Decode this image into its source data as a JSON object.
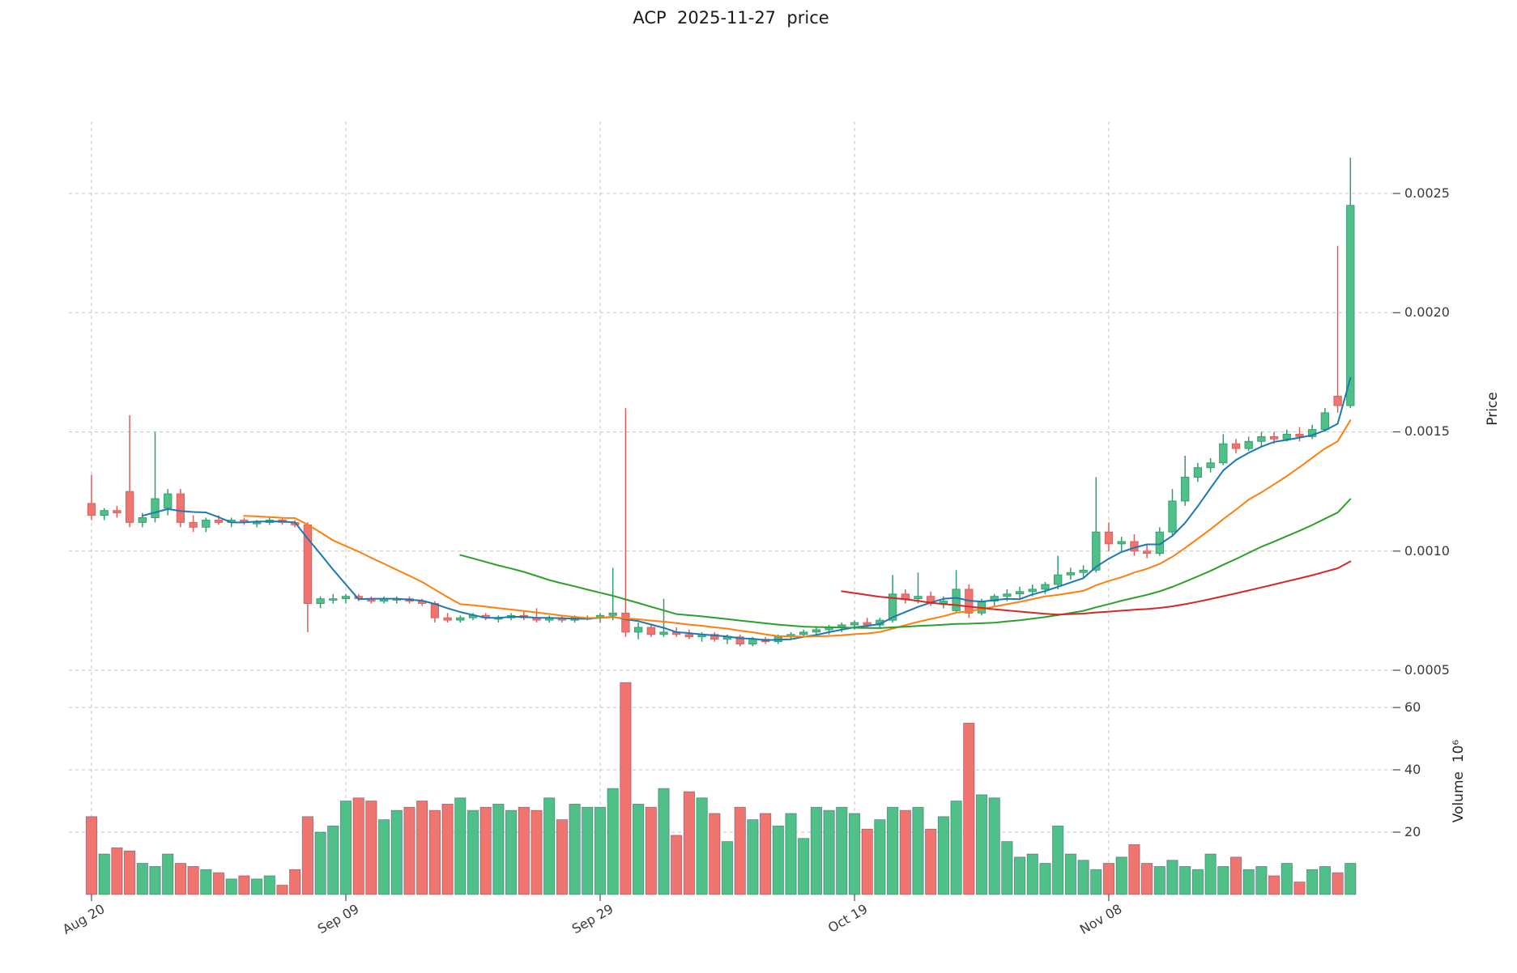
{
  "title": "ACP  2025-11-27  price",
  "axes": {
    "price_label": "Price",
    "volume_label": "Volume  10⁶",
    "price_ticks": [
      "0.0005",
      "0.0010",
      "0.0015",
      "0.0020",
      "0.0025"
    ],
    "volume_ticks": [
      "20",
      "40",
      "60"
    ],
    "x_ticks": [
      "Aug 20",
      "Sep 09",
      "Sep 29",
      "Oct 19",
      "Nov 08"
    ]
  },
  "chart_data": {
    "type": "candlestick",
    "title": "ACP  2025-11-27  price",
    "ylabel": "Price",
    "ylabel2": "Volume  10⁶",
    "grid": "dashed",
    "price_ylim": [
      0.0004,
      0.00285
    ],
    "volume_ylim": [
      0,
      70
    ],
    "price_tick_values": [
      0.0005,
      0.001,
      0.0015,
      0.002,
      0.0025
    ],
    "volume_tick_values": [
      20,
      40,
      60
    ],
    "x_tick_positions": [
      0,
      20,
      40,
      60,
      80
    ],
    "x_tick_labels": [
      "Aug 20",
      "Sep 09",
      "Sep 29",
      "Oct 19",
      "Nov 08"
    ],
    "up_color": "#4fc088",
    "down_color": "#f07470",
    "up_edge_color": "#2f9d6c",
    "down_edge_color": "#d95f5b",
    "moving_averages": [
      {
        "window": 5,
        "color": "#1f77b4"
      },
      {
        "window": 13,
        "color": "#ff7f0e"
      },
      {
        "window": 30,
        "color": "#2ca02c"
      },
      {
        "window": 60,
        "color": "#d62728"
      }
    ],
    "dates": [
      "2025-08-20",
      "2025-08-21",
      "2025-08-22",
      "2025-08-23",
      "2025-08-24",
      "2025-08-25",
      "2025-08-26",
      "2025-08-27",
      "2025-08-28",
      "2025-08-29",
      "2025-08-30",
      "2025-08-31",
      "2025-09-01",
      "2025-09-02",
      "2025-09-03",
      "2025-09-04",
      "2025-09-05",
      "2025-09-06",
      "2025-09-07",
      "2025-09-08",
      "2025-09-09",
      "2025-09-10",
      "2025-09-11",
      "2025-09-12",
      "2025-09-13",
      "2025-09-14",
      "2025-09-15",
      "2025-09-16",
      "2025-09-17",
      "2025-09-18",
      "2025-09-19",
      "2025-09-20",
      "2025-09-21",
      "2025-09-22",
      "2025-09-23",
      "2025-09-24",
      "2025-09-25",
      "2025-09-26",
      "2025-09-27",
      "2025-09-28",
      "2025-09-29",
      "2025-09-30",
      "2025-10-01",
      "2025-10-02",
      "2025-10-03",
      "2025-10-04",
      "2025-10-05",
      "2025-10-06",
      "2025-10-07",
      "2025-10-08",
      "2025-10-09",
      "2025-10-10",
      "2025-10-11",
      "2025-10-12",
      "2025-10-13",
      "2025-10-14",
      "2025-10-15",
      "2025-10-16",
      "2025-10-17",
      "2025-10-18",
      "2025-10-19",
      "2025-10-20",
      "2025-10-21",
      "2025-10-22",
      "2025-10-23",
      "2025-10-24",
      "2025-10-25",
      "2025-10-26",
      "2025-10-27",
      "2025-10-28",
      "2025-10-29",
      "2025-10-30",
      "2025-10-31",
      "2025-11-01",
      "2025-11-02",
      "2025-11-03",
      "2025-11-04",
      "2025-11-05",
      "2025-11-06",
      "2025-11-07",
      "2025-11-08",
      "2025-11-09",
      "2025-11-10",
      "2025-11-11",
      "2025-11-12",
      "2025-11-13",
      "2025-11-14",
      "2025-11-15",
      "2025-11-16",
      "2025-11-17",
      "2025-11-18",
      "2025-11-19",
      "2025-11-20",
      "2025-11-21",
      "2025-11-22",
      "2025-11-23",
      "2025-11-24",
      "2025-11-25",
      "2025-11-26",
      "2025-11-27"
    ],
    "open": [
      0.0012,
      0.00115,
      0.00117,
      0.00125,
      0.00112,
      0.00114,
      0.00118,
      0.00124,
      0.00112,
      0.0011,
      0.00113,
      0.00112,
      0.00113,
      0.00112,
      0.00112,
      0.00113,
      0.00112,
      0.00111,
      0.00078,
      0.0008,
      0.0008,
      0.00081,
      0.0008,
      0.00079,
      0.0008,
      0.0008,
      0.00079,
      0.00078,
      0.00072,
      0.00071,
      0.00072,
      0.00073,
      0.00072,
      0.00072,
      0.00073,
      0.00072,
      0.00071,
      0.00072,
      0.00071,
      0.00072,
      0.00072,
      0.00073,
      0.00074,
      0.00066,
      0.00068,
      0.00065,
      0.00066,
      0.00065,
      0.00064,
      0.00065,
      0.00063,
      0.00064,
      0.00061,
      0.00063,
      0.00062,
      0.00064,
      0.00065,
      0.00066,
      0.00067,
      0.00068,
      0.00069,
      0.0007,
      0.00069,
      0.00071,
      0.00082,
      0.0008,
      0.00081,
      0.00078,
      0.00075,
      0.00084,
      0.00074,
      0.00079,
      0.00081,
      0.00082,
      0.00083,
      0.00084,
      0.00086,
      0.0009,
      0.00091,
      0.00092,
      0.00108,
      0.00103,
      0.00104,
      0.001,
      0.00099,
      0.00108,
      0.00121,
      0.00131,
      0.00135,
      0.00137,
      0.00145,
      0.00143,
      0.00146,
      0.00148,
      0.00147,
      0.00149,
      0.00148,
      0.00151,
      0.00165,
      0.00161
    ],
    "high": [
      0.00132,
      0.00118,
      0.00119,
      0.00157,
      0.00116,
      0.0015,
      0.00126,
      0.00126,
      0.00115,
      0.00114,
      0.00115,
      0.00114,
      0.00114,
      0.00113,
      0.00114,
      0.00114,
      0.00113,
      0.00112,
      0.00081,
      0.00082,
      0.00082,
      0.00082,
      0.00081,
      0.00081,
      0.00081,
      0.00081,
      0.0008,
      0.00079,
      0.00074,
      0.00073,
      0.00074,
      0.00074,
      0.00073,
      0.00074,
      0.00075,
      0.00076,
      0.00073,
      0.00073,
      0.00073,
      0.00073,
      0.00074,
      0.00093,
      0.0016,
      0.0007,
      0.00069,
      0.0008,
      0.00068,
      0.00067,
      0.00066,
      0.00066,
      0.00065,
      0.00065,
      0.00064,
      0.00064,
      0.00065,
      0.00066,
      0.00067,
      0.00068,
      0.00069,
      0.0007,
      0.00071,
      0.00072,
      0.00072,
      0.0009,
      0.00084,
      0.00091,
      0.00083,
      0.00081,
      0.00092,
      0.00086,
      0.0008,
      0.00082,
      0.00084,
      0.00085,
      0.00086,
      0.00087,
      0.00098,
      0.00093,
      0.00094,
      0.00131,
      0.00112,
      0.00106,
      0.00107,
      0.00103,
      0.0011,
      0.00126,
      0.0014,
      0.00137,
      0.00139,
      0.00149,
      0.00147,
      0.00148,
      0.0015,
      0.0015,
      0.00151,
      0.00152,
      0.00153,
      0.0016,
      0.00228,
      0.00265
    ],
    "low": [
      0.00113,
      0.00113,
      0.00114,
      0.0011,
      0.0011,
      0.00112,
      0.00115,
      0.0011,
      0.00108,
      0.00108,
      0.00111,
      0.0011,
      0.00111,
      0.0011,
      0.00111,
      0.00111,
      0.0011,
      0.00066,
      0.00076,
      0.00078,
      0.00078,
      0.00079,
      0.00078,
      0.00078,
      0.00078,
      0.00078,
      0.00077,
      0.0007,
      0.0007,
      0.0007,
      0.00071,
      0.00071,
      0.0007,
      0.00071,
      0.00071,
      0.0007,
      0.0007,
      0.0007,
      0.0007,
      0.00071,
      0.0007,
      0.00071,
      0.00064,
      0.00063,
      0.00064,
      0.00064,
      0.00064,
      0.00063,
      0.00062,
      0.00062,
      0.00061,
      0.0006,
      0.0006,
      0.00061,
      0.00061,
      0.00063,
      0.00064,
      0.00064,
      0.00065,
      0.00066,
      0.00067,
      0.00068,
      0.00068,
      0.0007,
      0.00078,
      0.00078,
      0.00077,
      0.00076,
      0.00074,
      0.00072,
      0.00073,
      0.00077,
      0.00079,
      0.0008,
      0.00081,
      0.00082,
      0.00084,
      0.00088,
      0.00089,
      0.00091,
      0.001,
      0.001,
      0.00098,
      0.00097,
      0.00098,
      0.00106,
      0.00119,
      0.00129,
      0.00133,
      0.00136,
      0.00141,
      0.00142,
      0.00144,
      0.00145,
      0.00146,
      0.00146,
      0.00147,
      0.0015,
      0.00158,
      0.0016
    ],
    "close": [
      0.00115,
      0.00117,
      0.00116,
      0.00112,
      0.00114,
      0.00122,
      0.00124,
      0.00112,
      0.0011,
      0.00113,
      0.00112,
      0.00113,
      0.00112,
      0.00112,
      0.00113,
      0.00112,
      0.00111,
      0.00078,
      0.0008,
      0.0008,
      0.00081,
      0.0008,
      0.00079,
      0.0008,
      0.0008,
      0.00079,
      0.00078,
      0.00072,
      0.00071,
      0.00072,
      0.00073,
      0.00072,
      0.00072,
      0.00073,
      0.00072,
      0.00071,
      0.00072,
      0.00071,
      0.00072,
      0.00072,
      0.00073,
      0.00074,
      0.00066,
      0.00068,
      0.00065,
      0.00066,
      0.00065,
      0.00064,
      0.00065,
      0.00063,
      0.00064,
      0.00061,
      0.00063,
      0.00062,
      0.00064,
      0.00065,
      0.00066,
      0.00067,
      0.00068,
      0.00069,
      0.0007,
      0.00069,
      0.00071,
      0.00082,
      0.0008,
      0.00081,
      0.00078,
      0.00079,
      0.00084,
      0.00074,
      0.00079,
      0.00081,
      0.00082,
      0.00083,
      0.00084,
      0.00086,
      0.0009,
      0.00091,
      0.00092,
      0.00108,
      0.00103,
      0.00104,
      0.001,
      0.00099,
      0.00108,
      0.00121,
      0.00131,
      0.00135,
      0.00137,
      0.00145,
      0.00143,
      0.00146,
      0.00148,
      0.00147,
      0.00149,
      0.00148,
      0.00151,
      0.00158,
      0.00161,
      0.00245
    ],
    "volume_millions": [
      25,
      13,
      15,
      14,
      10,
      9,
      13,
      10,
      9,
      8,
      7,
      5,
      6,
      5,
      6,
      3,
      8,
      25,
      20,
      22,
      30,
      31,
      30,
      24,
      27,
      28,
      30,
      27,
      29,
      31,
      27,
      28,
      29,
      27,
      28,
      27,
      31,
      24,
      29,
      28,
      28,
      34,
      68,
      29,
      28,
      34,
      19,
      33,
      31,
      26,
      17,
      28,
      24,
      26,
      22,
      26,
      18,
      28,
      27,
      28,
      26,
      21,
      24,
      28,
      27,
      28,
      21,
      25,
      30,
      55,
      32,
      31,
      17,
      12,
      13,
      10,
      22,
      13,
      11,
      8,
      10,
      12,
      16,
      10,
      9,
      11,
      9,
      8,
      13,
      9,
      12,
      8,
      9,
      6,
      10,
      4,
      8,
      9,
      7,
      10
    ]
  }
}
